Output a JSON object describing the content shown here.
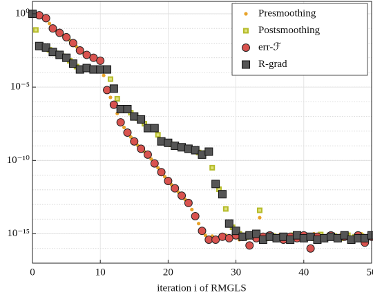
{
  "chart_data": {
    "type": "scatter",
    "xlabel": "iteration i of RMGLS",
    "yscale": "log",
    "grid": true,
    "minor_grid": true,
    "legend": "upper right",
    "xlim": [
      0,
      50
    ],
    "xticks": [
      0,
      10,
      20,
      30,
      40,
      50
    ],
    "ylim": [
      1e-17,
      7
    ],
    "yticks": [
      {
        "value": 1,
        "label": "10⁰"
      },
      {
        "value": 1e-05,
        "label": "10⁻⁵"
      },
      {
        "value": 1e-10,
        "label": "10⁻¹⁰"
      },
      {
        "value": 1e-15,
        "label": "10⁻¹⁵"
      }
    ],
    "x": [
      0,
      1,
      2,
      3,
      4,
      5,
      6,
      7,
      8,
      9,
      10,
      11,
      12,
      13,
      14,
      15,
      16,
      17,
      18,
      19,
      20,
      21,
      22,
      23,
      24,
      25,
      26,
      27,
      28,
      29,
      30,
      31,
      32,
      33,
      34,
      35,
      36,
      37,
      38,
      39,
      40,
      41,
      42,
      43,
      44,
      45,
      46,
      47,
      48,
      49,
      50
    ],
    "series": [
      {
        "name": "Presmoothing",
        "color": "#e8a32a",
        "marker": "dot",
        "x": [
          0.5,
          1.5,
          2.5,
          3.5,
          4.5,
          5.5,
          6.5,
          7.5,
          8.5,
          9.5,
          10.5,
          11.5,
          12.5,
          13.5,
          14.5,
          15.5,
          16.5,
          17.5,
          18.5,
          19.5,
          20.5,
          21.5,
          22.5,
          23.5,
          24.5,
          25.5,
          26.5,
          27.5,
          28.5,
          29.5,
          30.5,
          31.5,
          32.5,
          33.5,
          34.5,
          35.5,
          36.5,
          37.5,
          38.5,
          39.5,
          40.5,
          41.5,
          42.5,
          43.5,
          44.5,
          45.5,
          46.5,
          47.5,
          48.5,
          49.5
        ],
        "values": [
          0.89,
          0.63,
          0.22,
          0.071,
          0.035,
          0.0158,
          0.0056,
          0.0022,
          0.00126,
          0.00079,
          6.3e-05,
          2e-06,
          1.6e-07,
          1.8e-08,
          4e-09,
          1.1e-09,
          4e-10,
          1.26e-10,
          3.2e-11,
          7.9e-12,
          2.2e-12,
          7e-13,
          2.2e-13,
          4.5e-14,
          5e-15,
          7.9e-16,
          7e-16,
          5e-16,
          8e-16,
          6e-16,
          4e-16,
          1e-15,
          6e-16,
          1.26e-14,
          7e-16,
          5e-16,
          9e-16,
          6e-16,
          8e-16,
          5e-16,
          7e-16,
          1e-15,
          6e-16,
          8e-16,
          5e-16,
          9e-16,
          6e-16,
          7e-16,
          1e-15,
          5e-16
        ]
      },
      {
        "name": "Postsmoothing",
        "color": "#b5bb2a",
        "marker": "small-square",
        "x": [
          0.5,
          1.5,
          2.5,
          3.5,
          4.5,
          5.5,
          6.5,
          7.5,
          8.5,
          9.5,
          10.5,
          11.5,
          12.5,
          13.5,
          14.5,
          15.5,
          16.5,
          17.5,
          18.5,
          19.5,
          20.5,
          21.5,
          22.5,
          23.5,
          24.5,
          25.5,
          26.5,
          27.5,
          28.5,
          29.5,
          30.5,
          31.5,
          32.5,
          33.5,
          34.5,
          35.5,
          36.5,
          37.5,
          38.5,
          39.5,
          40.5,
          41.5,
          42.5,
          43.5,
          44.5,
          45.5,
          46.5,
          47.5,
          48.5,
          49.5
        ],
        "values": [
          0.079,
          0.0056,
          0.0035,
          0.002,
          0.00126,
          0.00063,
          0.00025,
          0.00018,
          0.00018,
          0.00016,
          0.00016,
          3.5e-05,
          1.6e-06,
          3.16e-07,
          1.8e-07,
          7.9e-08,
          3.2e-08,
          1.6e-08,
          5.6e-09,
          1.8e-09,
          1.26e-09,
          8.9e-10,
          7e-10,
          5.6e-10,
          3.5e-10,
          3.2e-10,
          3.2e-11,
          1.1e-12,
          5e-14,
          2.8e-15,
          1e-15,
          6e-16,
          8e-16,
          4e-14,
          5e-16,
          7e-16,
          6e-16,
          5e-16,
          8e-16,
          6e-16,
          7e-16,
          5e-16,
          9e-16,
          6e-16,
          7e-16,
          5e-16,
          8e-16,
          6e-16,
          7e-16,
          6e-16
        ]
      },
      {
        "name": "err-ℱ",
        "color": "#d9534f",
        "marker": "circle",
        "values": [
          1,
          0.794,
          0.501,
          0.1,
          0.0501,
          0.0251,
          0.01,
          0.00316,
          0.00158,
          0.001,
          0.00063,
          6.3e-06,
          6.3e-07,
          4e-08,
          7.9e-09,
          2e-09,
          6.3e-10,
          2.5e-10,
          6.3e-11,
          1.6e-11,
          4e-12,
          1.26e-12,
          4e-13,
          1.26e-13,
          1.6e-14,
          1.6e-15,
          4e-16,
          4e-16,
          6.3e-16,
          5e-16,
          7.9e-16,
          6.3e-16,
          1.6e-16,
          5e-16,
          6.3e-16,
          7.9e-16,
          5e-16,
          4e-16,
          6.3e-16,
          5e-16,
          7.9e-16,
          1e-16,
          6.3e-16,
          5e-16,
          7.9e-16,
          5e-16,
          6.3e-16,
          4e-16,
          7.9e-16,
          2.5e-16,
          6.3e-16
        ]
      },
      {
        "name": "R-grad",
        "color": "#555555",
        "marker": "square",
        "values": [
          1,
          0.0063,
          0.005,
          0.0025,
          0.00158,
          0.001,
          0.0004,
          0.00016,
          0.0002,
          0.00016,
          0.00016,
          0.00016,
          7.9e-06,
          3.16e-07,
          3.16e-07,
          1e-07,
          6.3e-08,
          1.6e-08,
          1.6e-08,
          2e-09,
          1.6e-09,
          1e-09,
          7.9e-10,
          6.3e-10,
          5e-10,
          2.5e-10,
          4e-10,
          2.5e-12,
          5e-13,
          5e-15,
          1.6e-15,
          6.3e-16,
          7.9e-16,
          1e-15,
          4e-16,
          6.3e-16,
          5e-16,
          6.3e-16,
          4e-16,
          7.9e-16,
          5e-16,
          6.3e-16,
          4e-16,
          5e-16,
          6.3e-16,
          5e-16,
          7.9e-16,
          4e-16,
          5e-16,
          5e-16,
          7.9e-16
        ]
      }
    ]
  }
}
